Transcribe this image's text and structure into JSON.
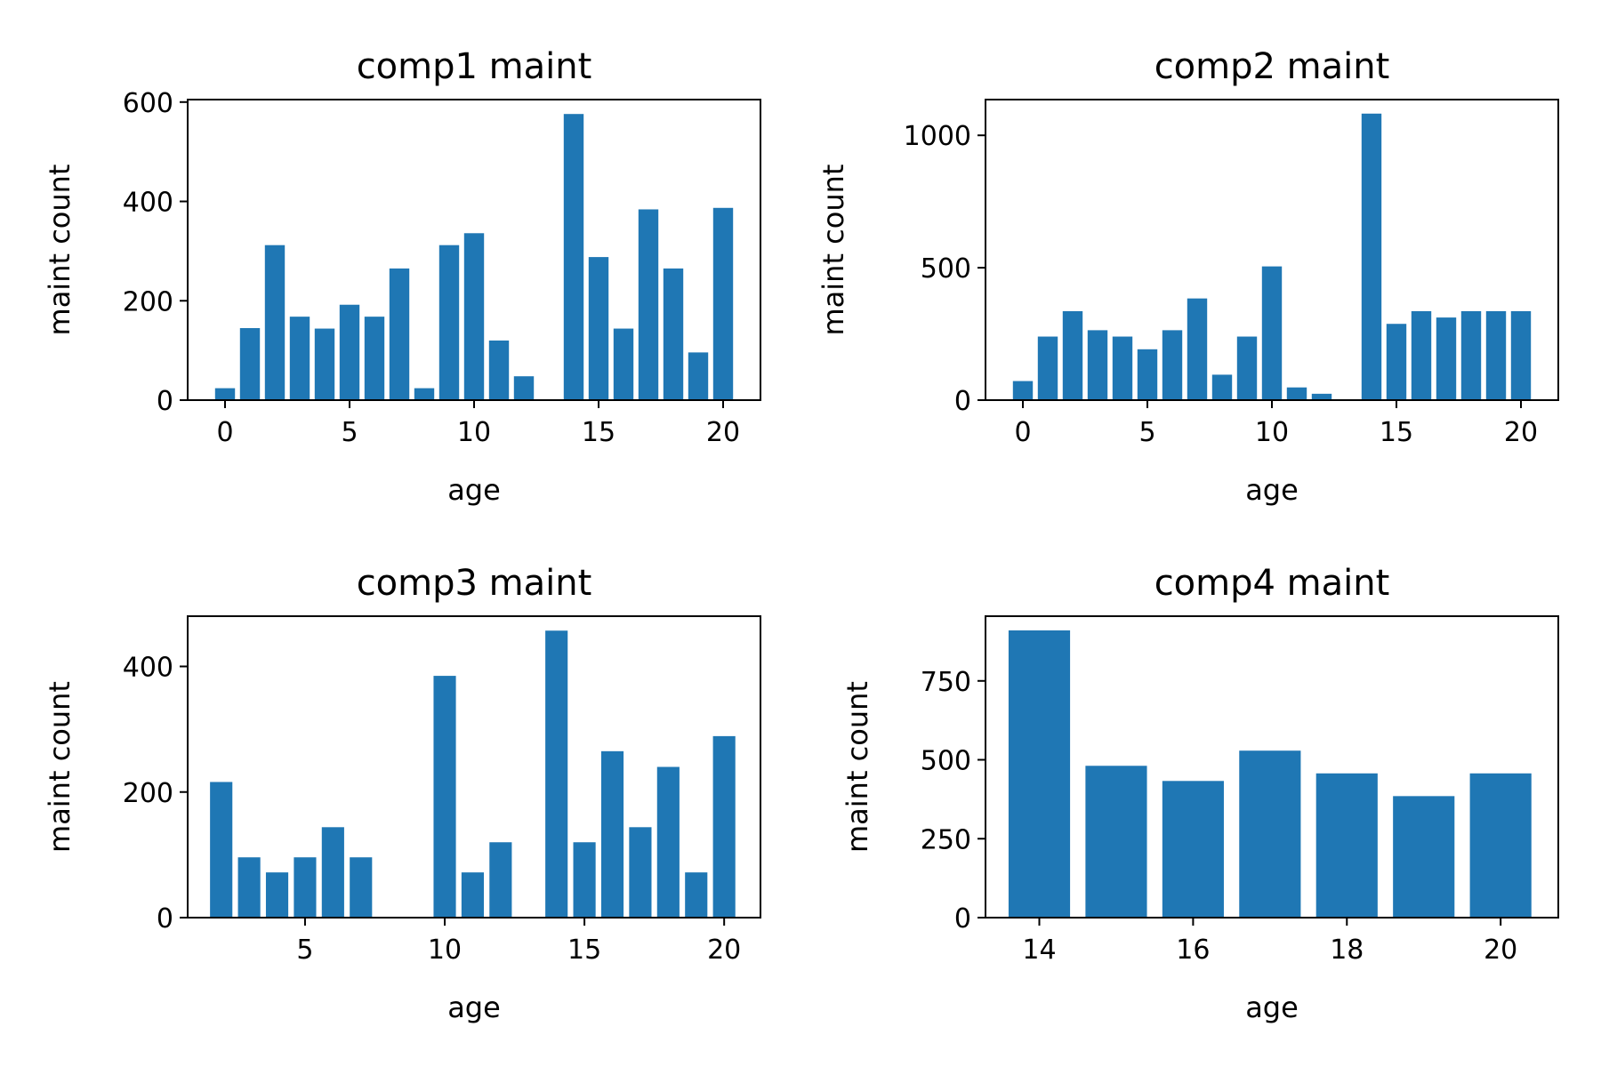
{
  "chart_data": [
    {
      "type": "bar",
      "title": "comp1 maint",
      "xlabel": "age",
      "ylabel": "maint count",
      "color": "#1f77b4",
      "grid": false,
      "xlim": [
        -1.5,
        21.5
      ],
      "ylim": [
        0,
        605
      ],
      "xticks": [
        0,
        5,
        10,
        15,
        20
      ],
      "yticks": [
        0,
        200,
        400,
        600
      ],
      "x": [
        0,
        1,
        2,
        3,
        4,
        5,
        6,
        7,
        8,
        9,
        10,
        11,
        12,
        14,
        15,
        16,
        17,
        18,
        19,
        20
      ],
      "values": [
        24,
        145,
        312,
        168,
        144,
        192,
        168,
        265,
        24,
        312,
        336,
        120,
        48,
        576,
        288,
        144,
        384,
        265,
        96,
        387
      ]
    },
    {
      "type": "bar",
      "title": "comp2 maint",
      "xlabel": "age",
      "ylabel": "maint count",
      "color": "#1f77b4",
      "grid": false,
      "xlim": [
        -1.5,
        21.5
      ],
      "ylim": [
        0,
        1135
      ],
      "xticks": [
        0,
        5,
        10,
        15,
        20
      ],
      "yticks": [
        0,
        500,
        1000
      ],
      "x": [
        0,
        1,
        2,
        3,
        4,
        5,
        6,
        7,
        8,
        9,
        10,
        11,
        12,
        14,
        15,
        16,
        17,
        18,
        19,
        20
      ],
      "values": [
        72,
        240,
        336,
        264,
        240,
        192,
        264,
        384,
        96,
        240,
        505,
        48,
        24,
        1082,
        288,
        336,
        312,
        336,
        336,
        336
      ]
    },
    {
      "type": "bar",
      "title": "comp3 maint",
      "xlabel": "age",
      "ylabel": "maint count",
      "color": "#1f77b4",
      "grid": false,
      "xlim": [
        0.8,
        21.3
      ],
      "ylim": [
        0,
        480
      ],
      "xticks": [
        5,
        10,
        15,
        20
      ],
      "yticks": [
        0,
        200,
        400
      ],
      "x": [
        2,
        3,
        4,
        5,
        6,
        7,
        10,
        11,
        12,
        14,
        15,
        16,
        17,
        18,
        19,
        20
      ],
      "values": [
        216,
        96,
        72,
        96,
        144,
        96,
        385,
        72,
        120,
        457,
        120,
        265,
        144,
        240,
        72,
        289
      ]
    },
    {
      "type": "bar",
      "title": "comp4 maint",
      "xlabel": "age",
      "ylabel": "maint count",
      "color": "#1f77b4",
      "grid": false,
      "xlim": [
        13.3,
        20.75
      ],
      "ylim": [
        0,
        955
      ],
      "xticks": [
        14,
        16,
        18,
        20
      ],
      "yticks": [
        0,
        250,
        500,
        750
      ],
      "x": [
        14,
        15,
        16,
        17,
        18,
        19,
        20
      ],
      "values": [
        910,
        481,
        433,
        529,
        457,
        385,
        457
      ]
    }
  ]
}
